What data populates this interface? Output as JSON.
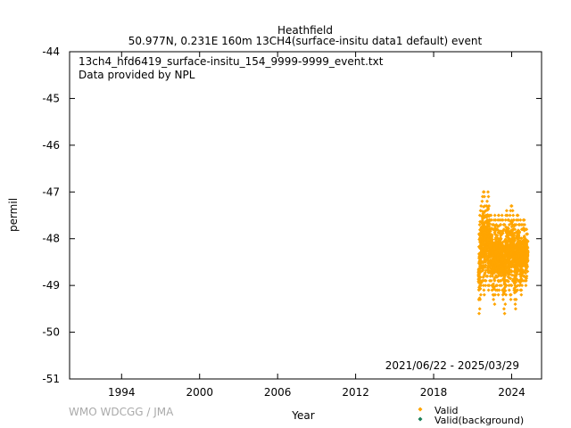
{
  "chart_data": {
    "type": "scatter",
    "title": "Heathfield",
    "subtitle": "50.977N, 0.231E 160m    13CH4(surface-insitu data1 default) event",
    "annotations": [
      "13ch4_hfd6419_surface-insitu_154_9999-9999_event.txt",
      "Data provided by NPL"
    ],
    "date_range": "2021/06/22 - 2025/03/29",
    "credit": "WMO WDCGG / JMA",
    "xlabel": "Year",
    "ylabel": "permil",
    "xlim": [
      1990,
      2026.3
    ],
    "ylim": [
      -51,
      -44
    ],
    "x_ticks": [
      1994,
      2000,
      2006,
      2012,
      2018,
      2024
    ],
    "x_tick_labels": [
      "1994",
      "2000",
      "2006",
      "2012",
      "2018",
      "2024"
    ],
    "y_ticks": [
      -51,
      -50,
      -49,
      -48,
      -47,
      -46,
      -45,
      -44
    ],
    "y_tick_labels": [
      "-51",
      "-50",
      "-49",
      "-48",
      "-47",
      "-46",
      "-45",
      "-44"
    ],
    "grid": false,
    "legend_position": "bottom-right, below plot",
    "series": [
      {
        "name": "Valid",
        "color": "#ffa500",
        "marker": "diamond",
        "x": [
          2021.47,
          2021.52,
          2021.57,
          2021.62,
          2021.67,
          2021.72,
          2021.77,
          2021.82,
          2021.87,
          2021.92,
          2021.97,
          2022.02,
          2022.07,
          2022.12,
          2022.17,
          2022.22,
          2022.27,
          2022.32,
          2022.37,
          2022.42,
          2022.47,
          2022.52,
          2022.57,
          2022.62,
          2022.67,
          2022.72,
          2022.77,
          2022.82,
          2022.87,
          2022.92,
          2022.97,
          2023.02,
          2023.07,
          2023.12,
          2023.17,
          2023.22,
          2023.27,
          2023.32,
          2023.37,
          2023.42,
          2023.47,
          2023.52,
          2023.57,
          2023.62,
          2023.67,
          2023.72,
          2023.77,
          2023.82,
          2023.87,
          2023.92,
          2023.97,
          2024.02,
          2024.07,
          2024.12,
          2024.17,
          2024.22,
          2024.27,
          2024.32,
          2024.37,
          2024.42,
          2024.47,
          2024.52,
          2024.57,
          2024.62,
          2024.67,
          2024.72,
          2024.77,
          2024.82,
          2024.87,
          2024.92,
          2024.97,
          2025.02,
          2025.07,
          2025.12,
          2025.17,
          2025.22
        ],
        "y_min": [
          -49.6,
          -49.5,
          -49.3,
          -49.2,
          -49.0,
          -48.9,
          -48.9,
          -49.0,
          -49.1,
          -49.2,
          -49.0,
          -48.9,
          -48.8,
          -48.8,
          -49.0,
          -49.1,
          -49.0,
          -48.9,
          -48.8,
          -48.9,
          -49.0,
          -49.1,
          -49.2,
          -49.3,
          -49.4,
          -49.2,
          -49.1,
          -49.0,
          -49.0,
          -49.1,
          -49.2,
          -49.1,
          -49.0,
          -48.9,
          -48.9,
          -49.0,
          -49.1,
          -49.2,
          -49.3,
          -49.5,
          -49.6,
          -49.4,
          -49.2,
          -49.0,
          -48.9,
          -48.9,
          -49.0,
          -49.1,
          -49.2,
          -49.3,
          -49.2,
          -49.0,
          -48.9,
          -48.9,
          -49.1,
          -49.3,
          -49.4,
          -49.5,
          -49.3,
          -49.1,
          -49.0,
          -48.9,
          -48.9,
          -49.0,
          -49.1,
          -49.2,
          -49.1,
          -49.0,
          -48.9,
          -48.8,
          -48.8,
          -48.9,
          -49.0,
          -48.9,
          -48.8,
          -48.7
        ],
        "y_max": [
          -47.9,
          -47.7,
          -47.5,
          -47.4,
          -47.3,
          -47.2,
          -47.1,
          -47.0,
          -47.0,
          -47.1,
          -47.3,
          -47.4,
          -47.3,
          -47.2,
          -47.0,
          -47.1,
          -47.3,
          -47.5,
          -47.6,
          -47.5,
          -47.6,
          -47.7,
          -47.8,
          -47.7,
          -47.6,
          -47.5,
          -47.6,
          -47.7,
          -47.8,
          -47.6,
          -47.5,
          -47.5,
          -47.6,
          -47.7,
          -47.7,
          -47.6,
          -47.5,
          -47.6,
          -47.7,
          -47.8,
          -47.7,
          -47.6,
          -47.5,
          -47.4,
          -47.5,
          -47.6,
          -47.6,
          -47.7,
          -47.5,
          -47.4,
          -47.3,
          -47.3,
          -47.4,
          -47.5,
          -47.6,
          -47.7,
          -47.8,
          -47.7,
          -47.6,
          -47.5,
          -47.5,
          -47.6,
          -47.7,
          -47.7,
          -47.6,
          -47.7,
          -47.8,
          -47.8,
          -47.7,
          -47.6,
          -47.6,
          -47.7,
          -47.8,
          -47.8,
          -47.9,
          -47.9
        ]
      },
      {
        "name": "Valid(background)",
        "color": "#1a7f5a",
        "marker": "diamond",
        "x": [],
        "y": []
      }
    ]
  }
}
